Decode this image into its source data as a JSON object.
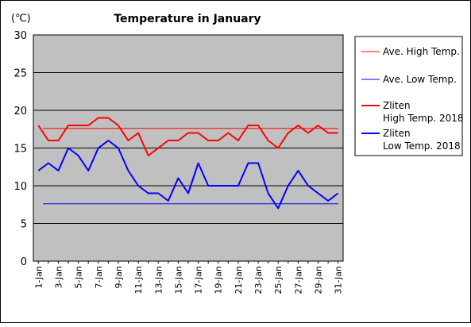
{
  "colors": {
    "plot_bg": "#c0c0c0",
    "grid": "#000000",
    "high": "#ff0000",
    "low": "#0000ff",
    "avg_high": "#ff0000",
    "avg_low": "#0000ff"
  },
  "chart_data": {
    "type": "line",
    "title": "Temperature in January",
    "unit_label": "(℃)",
    "xlabel": "",
    "ylabel": "",
    "ylim": [
      0,
      30
    ],
    "yticks": [
      0,
      5,
      10,
      15,
      20,
      25,
      30
    ],
    "grid": true,
    "legend_position": "right",
    "x_tick_labels": [
      "1-Jan",
      "3-Jan",
      "5-Jan",
      "7-Jan",
      "9-Jan",
      "11-Jan",
      "13-Jan",
      "15-Jan",
      "17-Jan",
      "19-Jan",
      "21-Jan",
      "23-Jan",
      "25-Jan",
      "27-Jan",
      "29-Jan",
      "31-Jan"
    ],
    "x": [
      "1-Jan",
      "2-Jan",
      "3-Jan",
      "4-Jan",
      "5-Jan",
      "6-Jan",
      "7-Jan",
      "8-Jan",
      "9-Jan",
      "10-Jan",
      "11-Jan",
      "12-Jan",
      "13-Jan",
      "14-Jan",
      "15-Jan",
      "16-Jan",
      "17-Jan",
      "18-Jan",
      "19-Jan",
      "20-Jan",
      "21-Jan",
      "22-Jan",
      "23-Jan",
      "24-Jan",
      "25-Jan",
      "26-Jan",
      "27-Jan",
      "28-Jan",
      "29-Jan",
      "30-Jan",
      "31-Jan"
    ],
    "series": [
      {
        "name": "Ave. High Temp.",
        "kind": "average",
        "color": "#ff0000",
        "values": [
          17.6,
          17.6,
          17.6,
          17.6,
          17.6,
          17.6,
          17.6,
          17.6,
          17.6,
          17.6,
          17.6,
          17.6,
          17.6,
          17.6,
          17.6,
          17.6,
          17.6,
          17.6,
          17.6,
          17.6,
          17.6,
          17.6,
          17.6,
          17.6,
          17.6,
          17.6,
          17.6,
          17.6,
          17.6,
          17.6,
          17.6
        ]
      },
      {
        "name": "Ave. Low Temp.",
        "kind": "average",
        "color": "#0000ff",
        "values": [
          7.6,
          7.6,
          7.6,
          7.6,
          7.6,
          7.6,
          7.6,
          7.6,
          7.6,
          7.6,
          7.6,
          7.6,
          7.6,
          7.6,
          7.6,
          7.6,
          7.6,
          7.6,
          7.6,
          7.6,
          7.6,
          7.6,
          7.6,
          7.6,
          7.6,
          7.6,
          7.6,
          7.6,
          7.6,
          7.6,
          7.6
        ]
      },
      {
        "name": "Zliten High Temp. 2018",
        "legend_lines": [
          "Zliten",
          "High Temp. 2018"
        ],
        "kind": "daily",
        "color": "#ff0000",
        "values": [
          18,
          16,
          16,
          18,
          18,
          18,
          19,
          19,
          18,
          16,
          17,
          14,
          15,
          16,
          16,
          17,
          17,
          16,
          16,
          17,
          16,
          18,
          18,
          16,
          15,
          17,
          18,
          17,
          18,
          17,
          17
        ]
      },
      {
        "name": "Zliten Low Temp. 2018",
        "legend_lines": [
          "Zliten",
          "Low Temp. 2018"
        ],
        "kind": "daily",
        "color": "#0000ff",
        "values": [
          12,
          13,
          12,
          15,
          14,
          12,
          15,
          16,
          15,
          12,
          10,
          9,
          9,
          8,
          11,
          9,
          13,
          10,
          10,
          10,
          10,
          13,
          13,
          9,
          7,
          10,
          12,
          10,
          9,
          8,
          9
        ]
      }
    ]
  }
}
